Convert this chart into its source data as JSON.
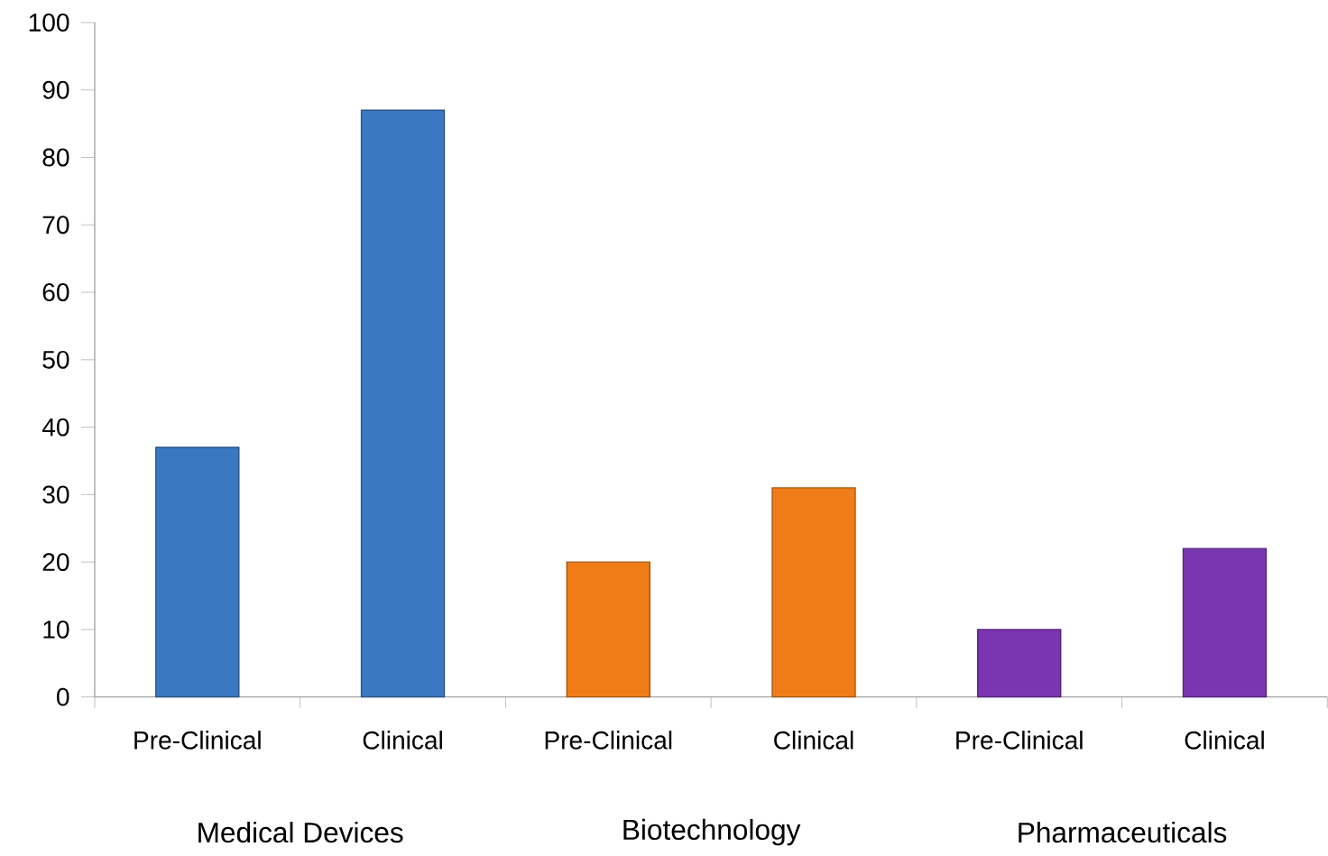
{
  "chart_data": {
    "type": "bar",
    "categories": [
      "Pre-Clinical",
      "Clinical",
      "Pre-Clinical",
      "Clinical",
      "Pre-Clinical",
      "Clinical"
    ],
    "values": [
      37,
      87,
      20,
      31,
      10,
      22
    ],
    "colors": [
      "#3a78c2",
      "#3a78c2",
      "#f07c18",
      "#f07c18",
      "#7a35b0",
      "#7a35b0"
    ],
    "ylim": [
      0,
      100
    ],
    "yticks": [
      0,
      10,
      20,
      30,
      40,
      50,
      60,
      70,
      80,
      90,
      100
    ],
    "grid": false,
    "annotations": [
      "Medical Devices",
      "Biotechnology",
      "Pharmaceuticals"
    ]
  }
}
